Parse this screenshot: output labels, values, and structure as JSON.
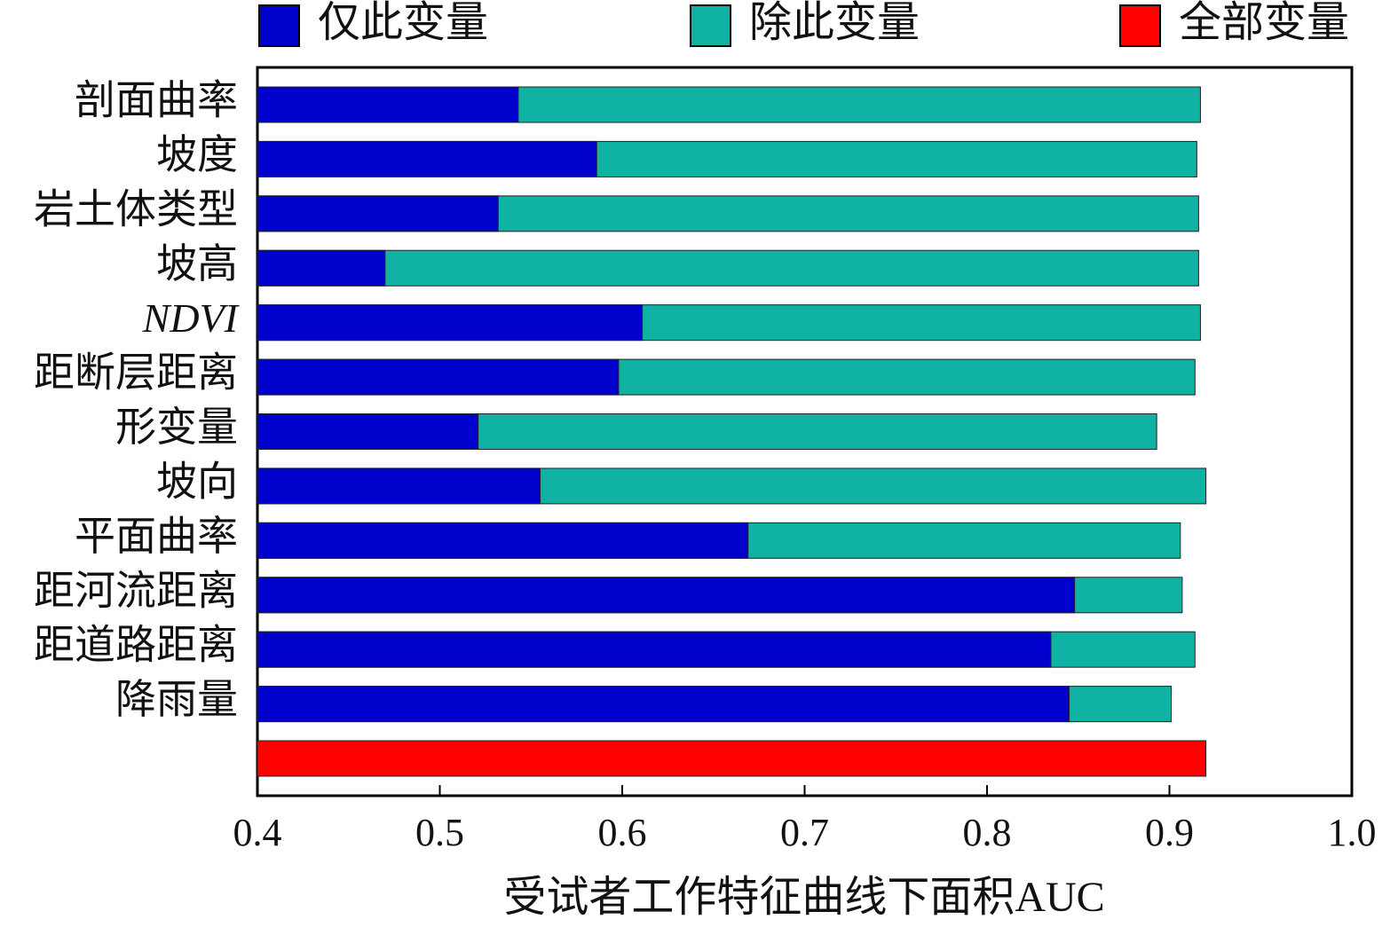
{
  "chart_data": {
    "type": "bar",
    "orientation": "horizontal",
    "overlap": true,
    "x_label": "受试者工作特征曲线下面积AUC",
    "categories": [
      "剖面曲率",
      "坡度",
      "岩土体类型",
      "坡高",
      "NDVI",
      "距断层距离",
      "形变量",
      "坡向",
      "平面曲率",
      "距河流距离",
      "距道路距离",
      "降雨量",
      null
    ],
    "series": [
      {
        "name": "仅此变量",
        "color": "#0000cc",
        "values": [
          0.543,
          0.586,
          0.532,
          0.47,
          0.611,
          0.598,
          0.521,
          0.555,
          0.669,
          0.848,
          0.835,
          0.845,
          null
        ]
      },
      {
        "name": "除此变量",
        "color": "#10b3a3",
        "values": [
          0.917,
          0.915,
          0.916,
          0.916,
          0.917,
          0.914,
          0.893,
          0.92,
          0.906,
          0.907,
          0.914,
          0.901,
          null
        ]
      },
      {
        "name": "全部变量",
        "color": "#ff0000",
        "values": [
          null,
          null,
          null,
          null,
          null,
          null,
          null,
          null,
          null,
          null,
          null,
          null,
          0.92
        ]
      }
    ],
    "xlim": [
      0.4,
      1.0
    ],
    "xticks": [
      0.4,
      0.5,
      0.6,
      0.7,
      0.8,
      0.9,
      {
        "value": 1,
        "label": "1.0"
      }
    ],
    "grid": false
  }
}
